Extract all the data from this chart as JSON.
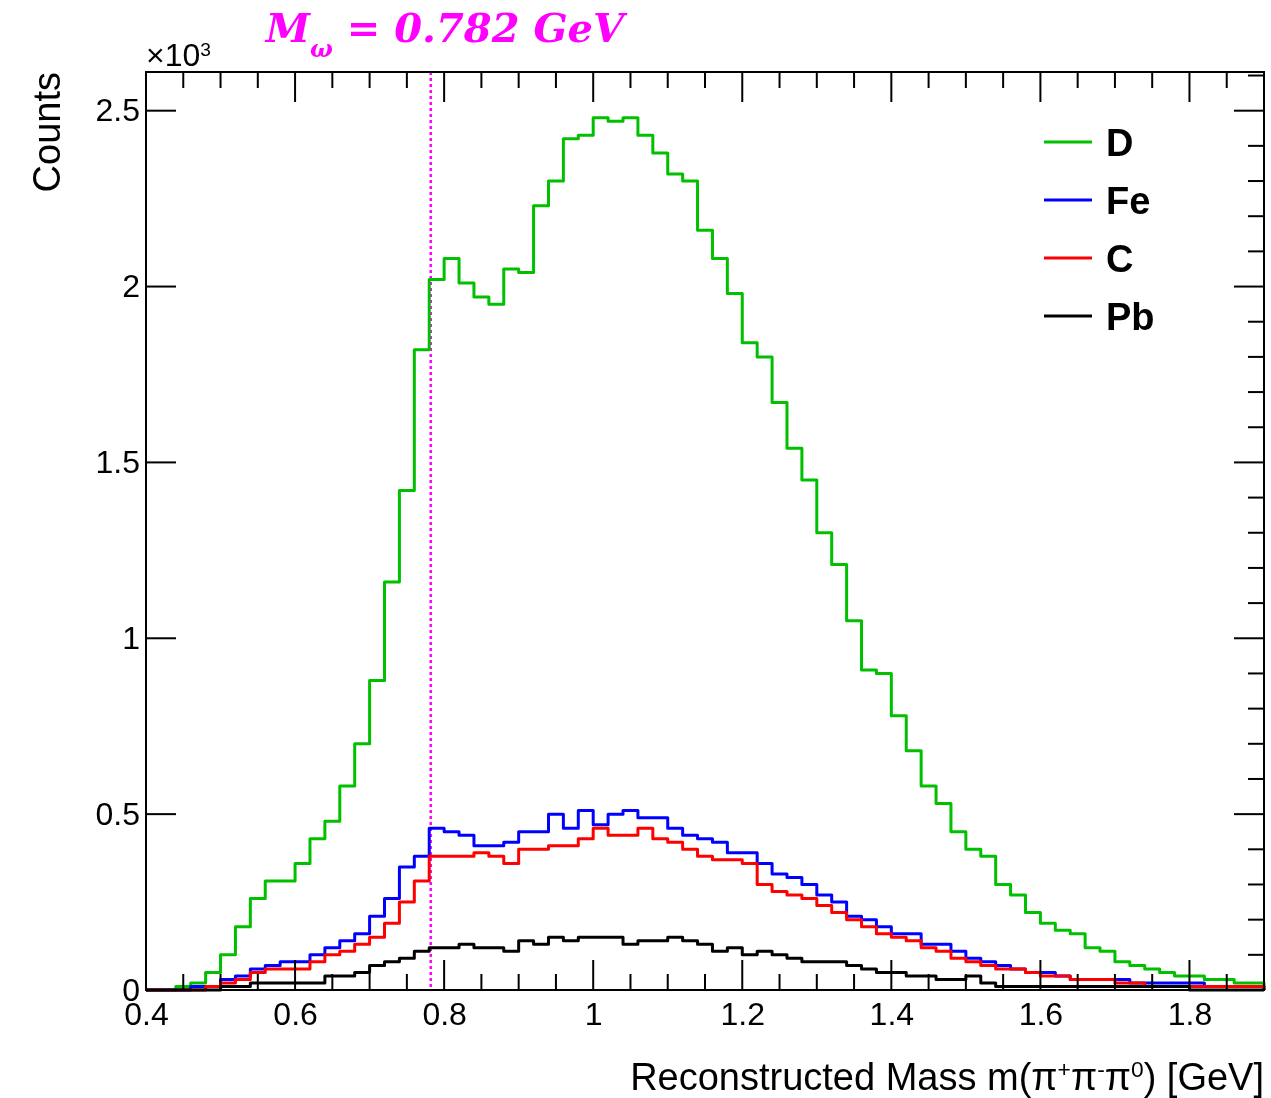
{
  "chart_data": {
    "type": "histogram",
    "xlabel": "Reconstructed Mass m(π$^{+}$π$^{-}$π$^{0}$) [GeV]",
    "ylabel": "Counts",
    "annotations": [
      "×10$^{3}$"
    ],
    "bins": [
      0.4,
      0.42,
      0.44,
      0.46,
      0.48,
      0.5,
      0.52,
      0.54,
      0.56,
      0.58,
      0.6,
      0.62,
      0.64,
      0.66,
      0.68,
      0.7,
      0.72,
      0.74,
      0.76,
      0.78,
      0.8,
      0.82,
      0.84,
      0.86,
      0.88,
      0.9,
      0.92,
      0.94,
      0.96,
      0.98,
      1.0,
      1.02,
      1.04,
      1.06,
      1.08,
      1.1,
      1.12,
      1.14,
      1.16,
      1.18,
      1.2,
      1.22,
      1.24,
      1.26,
      1.28,
      1.3,
      1.32,
      1.34,
      1.36,
      1.38,
      1.4,
      1.42,
      1.44,
      1.46,
      1.48,
      1.5,
      1.52,
      1.54,
      1.56,
      1.58,
      1.6,
      1.62,
      1.64,
      1.66,
      1.68,
      1.7,
      1.72,
      1.74,
      1.76,
      1.78,
      1.8,
      1.82,
      1.84,
      1.86,
      1.88,
      1.9
    ],
    "series": [
      {
        "name": "D",
        "color": "#00c000",
        "values": [
          0,
          0,
          0.01,
          0.02,
          0.05,
          0.1,
          0.18,
          0.26,
          0.31,
          0.31,
          0.36,
          0.43,
          0.48,
          0.58,
          0.7,
          0.88,
          1.16,
          1.42,
          1.82,
          2.02,
          2.08,
          2.01,
          1.97,
          1.95,
          2.05,
          2.04,
          2.23,
          2.3,
          2.42,
          2.43,
          2.48,
          2.47,
          2.48,
          2.43,
          2.38,
          2.32,
          2.3,
          2.16,
          2.08,
          1.98,
          1.84,
          1.8,
          1.67,
          1.54,
          1.45,
          1.3,
          1.21,
          1.05,
          0.91,
          0.9,
          0.78,
          0.68,
          0.58,
          0.53,
          0.45,
          0.4,
          0.38,
          0.3,
          0.27,
          0.22,
          0.19,
          0.17,
          0.16,
          0.12,
          0.11,
          0.08,
          0.07,
          0.06,
          0.05,
          0.04,
          0.04,
          0.03,
          0.03,
          0.02,
          0.02
        ]
      },
      {
        "name": "Fe",
        "color": "#0000ff",
        "values": [
          0,
          0,
          0,
          0.01,
          0.01,
          0.03,
          0.04,
          0.06,
          0.07,
          0.08,
          0.08,
          0.1,
          0.12,
          0.14,
          0.16,
          0.21,
          0.26,
          0.35,
          0.38,
          0.46,
          0.45,
          0.44,
          0.41,
          0.41,
          0.42,
          0.45,
          0.45,
          0.5,
          0.46,
          0.51,
          0.47,
          0.5,
          0.51,
          0.49,
          0.49,
          0.46,
          0.44,
          0.43,
          0.42,
          0.39,
          0.39,
          0.36,
          0.33,
          0.32,
          0.3,
          0.27,
          0.25,
          0.21,
          0.2,
          0.18,
          0.16,
          0.16,
          0.13,
          0.13,
          0.11,
          0.09,
          0.08,
          0.07,
          0.06,
          0.05,
          0.05,
          0.04,
          0.03,
          0.03,
          0.03,
          0.03,
          0.02,
          0.02,
          0.02,
          0.02,
          0.02,
          0.01,
          0.01,
          0.01,
          0.01
        ]
      },
      {
        "name": "C",
        "color": "#ff0000",
        "values": [
          0,
          0,
          0,
          0,
          0.01,
          0.02,
          0.03,
          0.05,
          0.06,
          0.06,
          0.06,
          0.08,
          0.1,
          0.11,
          0.13,
          0.15,
          0.19,
          0.25,
          0.31,
          0.38,
          0.38,
          0.38,
          0.39,
          0.38,
          0.36,
          0.4,
          0.4,
          0.41,
          0.41,
          0.43,
          0.46,
          0.44,
          0.44,
          0.46,
          0.43,
          0.42,
          0.4,
          0.38,
          0.37,
          0.37,
          0.36,
          0.3,
          0.28,
          0.27,
          0.26,
          0.24,
          0.22,
          0.2,
          0.18,
          0.16,
          0.15,
          0.14,
          0.12,
          0.11,
          0.09,
          0.08,
          0.07,
          0.06,
          0.06,
          0.05,
          0.04,
          0.04,
          0.03,
          0.03,
          0.03,
          0.02,
          0.02,
          0.01,
          0.01,
          0.01,
          0.01,
          0.01,
          0.01,
          0.01,
          0.01
        ]
      },
      {
        "name": "Pb",
        "color": "#000000",
        "values": [
          0,
          0,
          0,
          0,
          0,
          0.01,
          0.01,
          0.02,
          0.02,
          0.02,
          0.02,
          0.02,
          0.04,
          0.04,
          0.05,
          0.07,
          0.08,
          0.09,
          0.11,
          0.12,
          0.12,
          0.13,
          0.12,
          0.12,
          0.11,
          0.14,
          0.13,
          0.15,
          0.14,
          0.15,
          0.15,
          0.15,
          0.13,
          0.14,
          0.14,
          0.15,
          0.14,
          0.13,
          0.11,
          0.12,
          0.1,
          0.11,
          0.1,
          0.09,
          0.08,
          0.08,
          0.08,
          0.07,
          0.06,
          0.05,
          0.05,
          0.04,
          0.04,
          0.03,
          0.03,
          0.04,
          0.02,
          0.01,
          0.01,
          0.01,
          0.01,
          0.01,
          0.01,
          0.01,
          0.01,
          0.01,
          0.01,
          0.01,
          0.01,
          0.01,
          0,
          0,
          0,
          0,
          0
        ]
      }
    ],
    "xlim": [
      0.4,
      1.9
    ],
    "xticks": [
      0.4,
      0.6,
      0.8,
      1,
      1.2,
      1.4,
      1.6,
      1.8
    ],
    "ylim": [
      0,
      2.61
    ],
    "yticks": [
      0,
      0.5,
      1,
      1.5,
      2,
      2.5
    ],
    "ref_lines": [
      {
        "axis": "x",
        "value": 0.782,
        "label": "M$_{ω}$ = 0.782 GeV",
        "color": "#ff00ff",
        "line_style": "dotted"
      }
    ],
    "legend": "top right",
    "grid": false
  }
}
